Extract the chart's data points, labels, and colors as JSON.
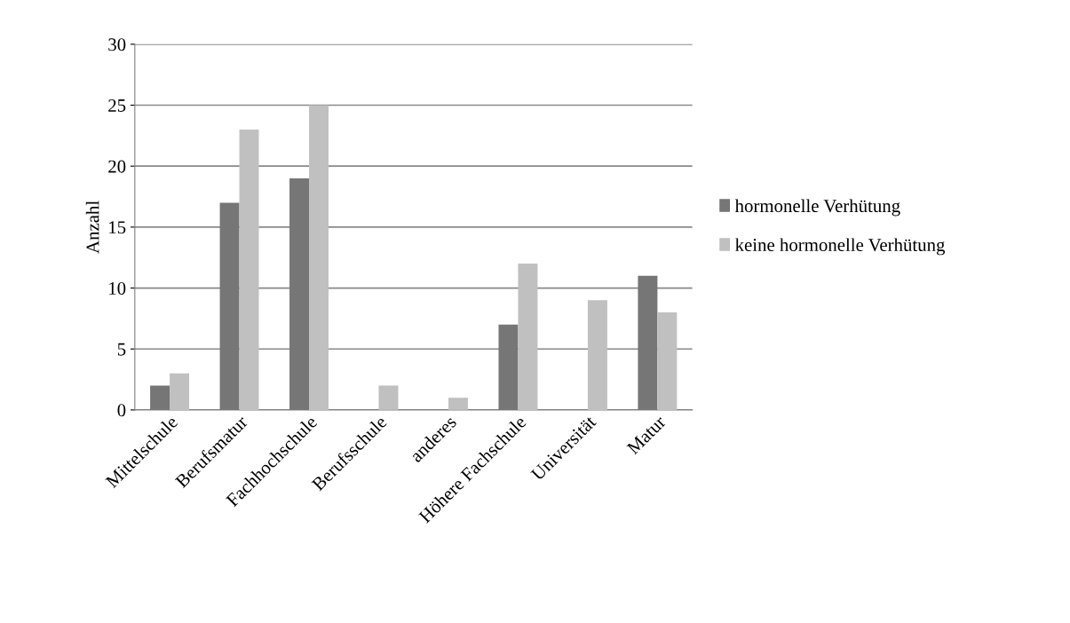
{
  "chart_data": {
    "type": "bar",
    "ylabel": "Anzahl",
    "categories": [
      "Mittelschule",
      "Berufsmatur",
      "Fachhochschule",
      "Berufsschule",
      "anderes",
      "Höhere Fachschule",
      "Universität",
      "Matur"
    ],
    "series": [
      {
        "name": "hormonelle Verhütung",
        "color": "#767676",
        "values": [
          2,
          17,
          19,
          0,
          0,
          7,
          0,
          11
        ]
      },
      {
        "name": "keine hormonelle Verhütung",
        "color": "#c0c0c0",
        "values": [
          3,
          23,
          25,
          2,
          1,
          12,
          9,
          8
        ]
      }
    ],
    "ylim": [
      0,
      30
    ],
    "yticks": [
      0,
      5,
      10,
      15,
      20,
      25,
      30
    ],
    "grid": "y",
    "legend": "right"
  }
}
